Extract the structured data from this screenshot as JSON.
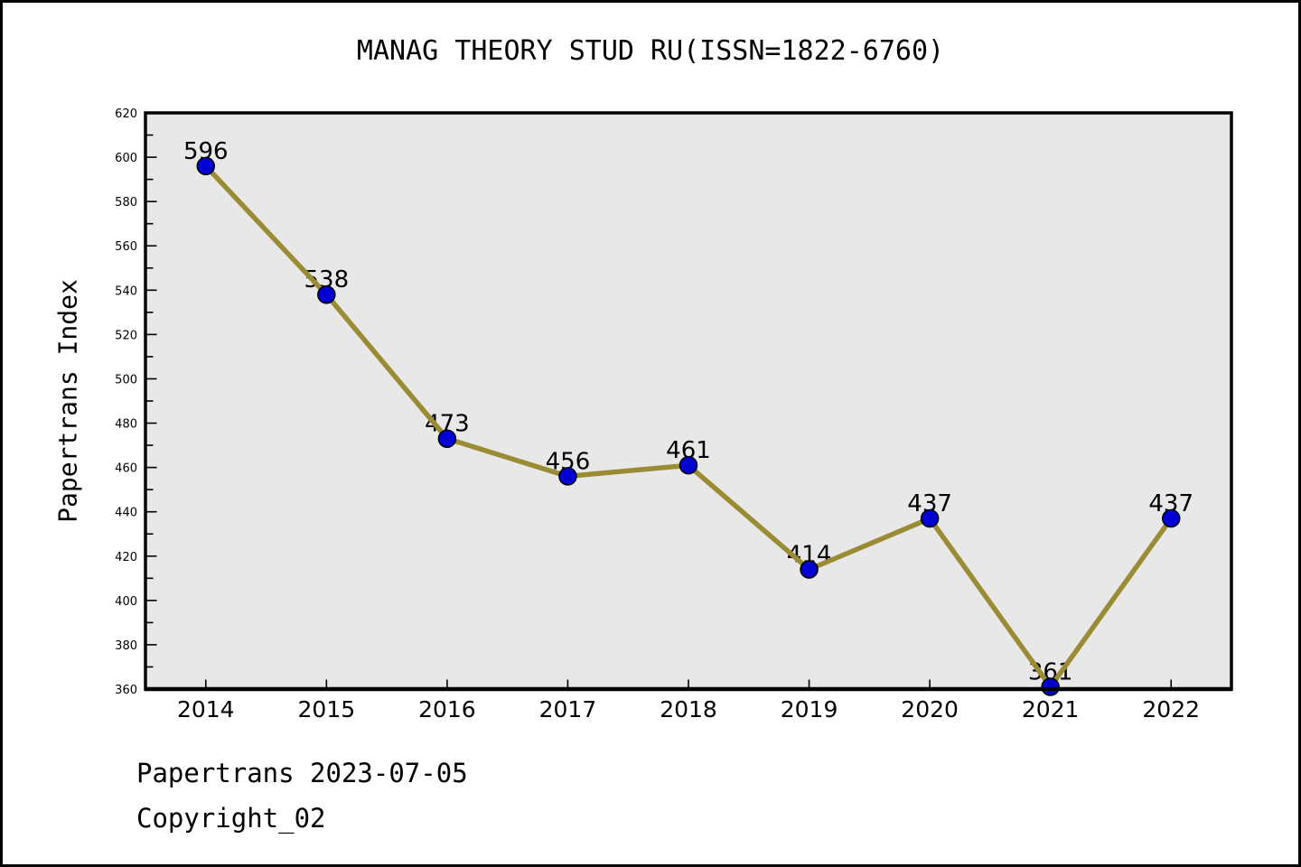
{
  "page": {
    "title": "MANAG THEORY STUD RU(ISSN=1822-6760)",
    "footer": {
      "line1": "Papertrans 2023-07-05",
      "line2": "Copyright_02"
    }
  },
  "chart_data": {
    "type": "line",
    "title": "MANAG THEORY STUD RU(ISSN=1822-6760)",
    "xlabel": "",
    "ylabel": "Papertrans Index",
    "categories": [
      "2014",
      "2015",
      "2016",
      "2017",
      "2018",
      "2019",
      "2020",
      "2021",
      "2022"
    ],
    "series": [
      {
        "name": "Papertrans Index",
        "values": [
          596,
          538,
          473,
          456,
          461,
          414,
          437,
          361,
          437
        ]
      }
    ],
    "point_labels": [
      "596",
      "538",
      "473",
      "456",
      "461",
      "414",
      "437",
      "361",
      "437"
    ],
    "ylim": [
      360,
      620
    ],
    "ytick_major_step": 20,
    "ytick_minor_step": 10,
    "grid": false,
    "legend_position": "none",
    "colors": {
      "line": "#9a8b35",
      "marker_fill": "#0000d2",
      "marker_edge": "#000000",
      "plot_bg": "#e8e8e8",
      "figure_bg": "#ffffff",
      "axis": "#000000",
      "text": "#000000"
    }
  }
}
